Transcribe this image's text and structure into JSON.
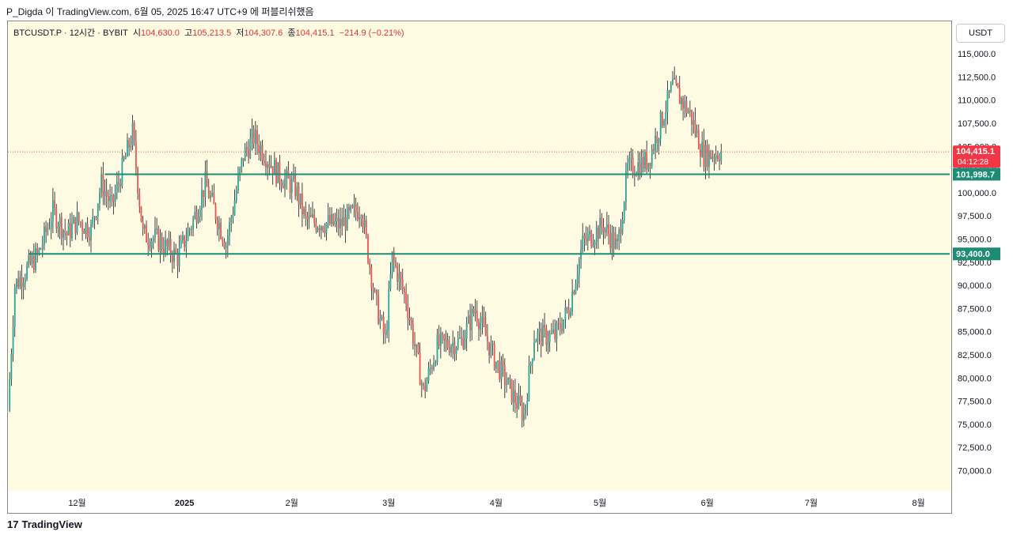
{
  "header": {
    "published_line": "P_Digda 이 TradingView.com, 6월 05, 2025 16:47 UTC+9 에 퍼블리쉬했음"
  },
  "legend": {
    "symbol": "BTCUSDT.P · 12시간 · BYBIT",
    "open_label": "시",
    "open_value": "104,630.0",
    "high_label": "고",
    "high_value": "105,213.5",
    "low_label": "저",
    "low_value": "104,307.6",
    "close_label": "종",
    "close_value": "104,415.1",
    "change": "−214.9 (−0.21%)"
  },
  "currency_button": "USDT",
  "footer": {
    "brand": "TradingView"
  },
  "colors": {
    "up": "#26a69a",
    "down": "#ef5350",
    "level_line": "#1e8c74",
    "price_line": "#ef5350",
    "background": "#fffbe3"
  },
  "chart_data": {
    "type": "candlestick",
    "symbol": "BTCUSDT.P",
    "interval": "12시간",
    "exchange": "BYBIT",
    "ylim": [
      68000,
      118500
    ],
    "y_ticks": [
      "115,000.0",
      "112,500.0",
      "110,000.0",
      "107,500.0",
      "105,000.0",
      "102,500.0",
      "100,000.0",
      "97,500.0",
      "95,000.0",
      "92,500.0",
      "90,000.0",
      "87,500.0",
      "85,000.0",
      "82,500.0",
      "80,000.0",
      "77,500.0",
      "75,000.0",
      "72,500.0",
      "70,000.0"
    ],
    "y_tick_values": [
      115000,
      112500,
      110000,
      107500,
      105000,
      102500,
      100000,
      97500,
      95000,
      92500,
      90000,
      87500,
      85000,
      82500,
      80000,
      77500,
      75000,
      72500,
      70000
    ],
    "x_ticks": [
      "12월",
      "2025",
      "2월",
      "3월",
      "4월",
      "5월",
      "6월",
      "7월",
      "8월"
    ],
    "x_tick_dates": [
      "2024-12-01",
      "2025-01-01",
      "2025-02-01",
      "2025-03-01",
      "2025-04-01",
      "2025-05-01",
      "2025-06-01",
      "2025-07-01",
      "2025-08-01"
    ],
    "x_range": [
      "2024-11-11",
      "2025-08-10"
    ],
    "close_path": [
      [
        "2024-11-11",
        76500
      ],
      [
        "2024-11-13",
        90000
      ],
      [
        "2024-11-20",
        93500
      ],
      [
        "2024-11-24",
        98000
      ],
      [
        "2024-11-28",
        95500
      ],
      [
        "2024-12-01",
        97000
      ],
      [
        "2024-12-05",
        96000
      ],
      [
        "2024-12-08",
        101000
      ],
      [
        "2024-12-11",
        98500
      ],
      [
        "2024-12-17",
        106500
      ],
      [
        "2024-12-20",
        95500
      ],
      [
        "2024-12-24",
        95000
      ],
      [
        "2024-12-30",
        93000
      ],
      [
        "2025-01-04",
        97500
      ],
      [
        "2025-01-07",
        101000
      ],
      [
        "2025-01-13",
        94500
      ],
      [
        "2025-01-18",
        104000
      ],
      [
        "2025-01-21",
        106000
      ],
      [
        "2025-01-28",
        102000
      ],
      [
        "2025-02-02",
        100500
      ],
      [
        "2025-02-05",
        97000
      ],
      [
        "2025-02-15",
        96500
      ],
      [
        "2025-02-21",
        98500
      ],
      [
        "2025-02-25",
        88500
      ],
      [
        "2025-02-28",
        84000
      ],
      [
        "2025-03-02",
        93000
      ],
      [
        "2025-03-06",
        88500
      ],
      [
        "2025-03-11",
        78500
      ],
      [
        "2025-03-15",
        83500
      ],
      [
        "2025-03-22",
        84000
      ],
      [
        "2025-03-26",
        87500
      ],
      [
        "2025-03-31",
        82500
      ],
      [
        "2025-04-06",
        78000
      ],
      [
        "2025-04-09",
        76000
      ],
      [
        "2025-04-12",
        84500
      ],
      [
        "2025-04-18",
        84500
      ],
      [
        "2025-04-22",
        87500
      ],
      [
        "2025-04-26",
        94500
      ],
      [
        "2025-05-02",
        96500
      ],
      [
        "2025-05-06",
        94000
      ],
      [
        "2025-05-09",
        102500
      ],
      [
        "2025-05-15",
        103500
      ],
      [
        "2025-05-22",
        111500
      ],
      [
        "2025-05-27",
        108500
      ],
      [
        "2025-05-31",
        104000
      ],
      [
        "2025-06-05",
        104415
      ]
    ],
    "horizontal_levels": [
      {
        "label": "101,998.7",
        "value": 101998.7,
        "start": "2024-12-09"
      },
      {
        "label": "93,400.0",
        "value": 93400.0,
        "start": "2024-11-17"
      }
    ],
    "last_price": {
      "label": "104,415.1",
      "value": 104415.1,
      "countdown": "04:12:28"
    }
  }
}
